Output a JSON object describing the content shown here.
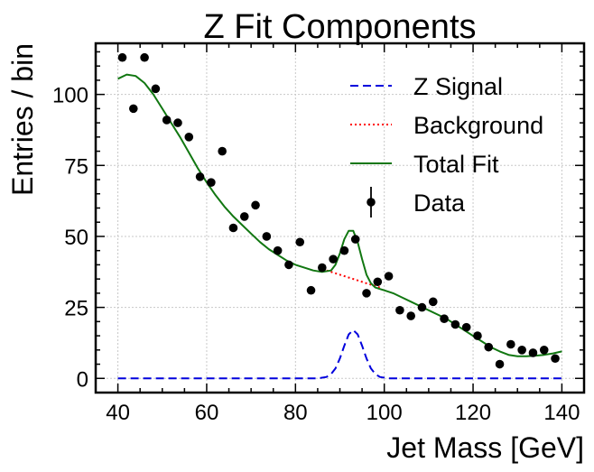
{
  "chart_data": {
    "type": "line",
    "title": "Z Fit Components",
    "xlabel": "Jet Mass [GeV]",
    "ylabel": "Entries / bin",
    "xlim": [
      35,
      145
    ],
    "ylim": [
      -5,
      118
    ],
    "xticks": [
      40,
      60,
      80,
      100,
      120,
      140
    ],
    "yticks": [
      0,
      25,
      50,
      75,
      100
    ],
    "grid": true,
    "legend_position": "top-right",
    "series": [
      {
        "name": "Z Signal",
        "style": "dashed",
        "color": "#0000dd",
        "x": [
          40,
          60,
          80,
          85,
          87,
          88,
          89,
          90,
          91,
          92,
          93,
          94,
          95,
          96,
          97,
          98,
          99,
          101,
          105,
          120,
          140
        ],
        "y": [
          0,
          0,
          0,
          0,
          0.5,
          1.5,
          3.5,
          7,
          11.5,
          15.5,
          17,
          15.5,
          11.5,
          7,
          3.5,
          1.5,
          0.5,
          0,
          0,
          0,
          0
        ]
      },
      {
        "name": "Background",
        "style": "dotted",
        "color": "#ff0000",
        "x": [
          87,
          90,
          93,
          96,
          99
        ],
        "y": [
          38,
          36.5,
          35,
          33.5,
          32
        ]
      },
      {
        "name": "Total Fit",
        "style": "solid",
        "color": "#117711",
        "x": [
          40,
          42,
          44,
          46,
          48,
          50,
          52,
          54,
          56,
          58,
          60,
          62,
          64,
          66,
          68,
          70,
          72,
          74,
          76,
          78,
          80,
          82,
          84,
          86,
          88,
          89,
          90,
          91,
          92,
          93,
          94,
          95,
          96,
          97,
          98,
          99,
          100,
          102,
          104,
          106,
          108,
          110,
          112,
          114,
          116,
          118,
          120,
          122,
          124,
          126,
          128,
          130,
          132,
          134,
          136,
          138,
          140
        ],
        "y": [
          105.5,
          107,
          106.5,
          104,
          100,
          95,
          90,
          85,
          79.5,
          74,
          69,
          64.5,
          60.5,
          57,
          54,
          51,
          48,
          45.5,
          43.5,
          41.5,
          40,
          39,
          38,
          37.5,
          38,
          40,
          44,
          49,
          52,
          52,
          48,
          42,
          36.5,
          33.5,
          32,
          31.5,
          31,
          30,
          28.5,
          27,
          25.5,
          24,
          22.5,
          21,
          19,
          17,
          15,
          13,
          11,
          9.5,
          8.3,
          7.8,
          7.8,
          8,
          8.3,
          8.8,
          9.5
        ]
      },
      {
        "name": "Data",
        "style": "markers",
        "color": "#000000",
        "x": [
          41,
          43.5,
          46,
          48.5,
          51,
          53.5,
          56,
          58.5,
          61,
          63.5,
          66,
          68.5,
          71,
          73.5,
          76,
          78.5,
          81,
          83.5,
          86,
          88.5,
          91,
          93.5,
          96,
          98.5,
          101,
          103.5,
          106,
          108.5,
          111,
          113.5,
          116,
          118.5,
          121,
          123.5,
          126,
          128.5,
          131,
          133.5,
          136,
          138.5
        ],
        "y": [
          113,
          95,
          113,
          102,
          91,
          90,
          85,
          71,
          69,
          80,
          53,
          57,
          61,
          50,
          45,
          40,
          48,
          31,
          39,
          42,
          45,
          49,
          30,
          34,
          36,
          24,
          22,
          25,
          27,
          21,
          19,
          18,
          15,
          11,
          5,
          12,
          10,
          9,
          10,
          7
        ]
      }
    ]
  }
}
